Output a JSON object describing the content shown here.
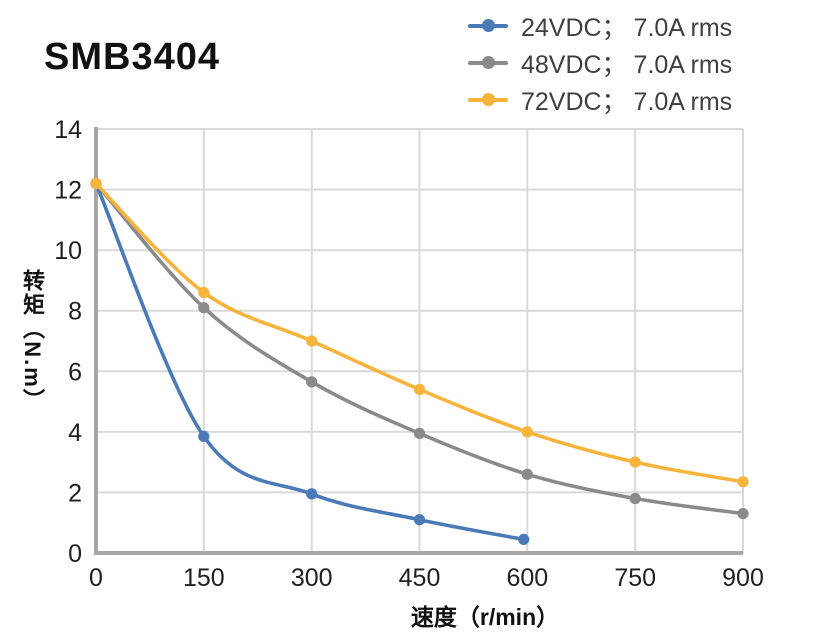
{
  "chart_data": {
    "type": "line",
    "title": "SMB3404",
    "xlabel": "速度（r/min）",
    "ylabel": "转矩（N.m）",
    "xlim": [
      0,
      900
    ],
    "ylim": [
      0,
      14
    ],
    "xticks": [
      0,
      150,
      300,
      450,
      600,
      750,
      900
    ],
    "yticks": [
      0,
      2,
      4,
      6,
      8,
      10,
      12,
      14
    ],
    "grid": true,
    "legend_position": "top-right",
    "colors": {
      "grid": "#d9d9d9",
      "axis": "#a6a6a6",
      "tick_text": "#1f1f1f",
      "legend_text": "#3f3f3f"
    },
    "series": [
      {
        "name": "24VDC； 7.0A rms",
        "color": "#4a7ab7",
        "points": [
          [
            0,
            12.2
          ],
          [
            150,
            3.85
          ],
          [
            300,
            1.95
          ],
          [
            450,
            1.1
          ],
          [
            595,
            0.45
          ]
        ]
      },
      {
        "name": "48VDC； 7.0A rms",
        "color": "#8a8a8a",
        "points": [
          [
            0,
            12.2
          ],
          [
            150,
            8.1
          ],
          [
            300,
            5.65
          ],
          [
            450,
            3.95
          ],
          [
            600,
            2.6
          ],
          [
            750,
            1.8
          ],
          [
            900,
            1.3
          ]
        ]
      },
      {
        "name": "72VDC； 7.0A rms",
        "color": "#f8b33a",
        "points": [
          [
            0,
            12.2
          ],
          [
            150,
            8.6
          ],
          [
            300,
            7.0
          ],
          [
            450,
            5.4
          ],
          [
            600,
            4.0
          ],
          [
            750,
            3.0
          ],
          [
            900,
            2.35
          ]
        ]
      }
    ]
  }
}
